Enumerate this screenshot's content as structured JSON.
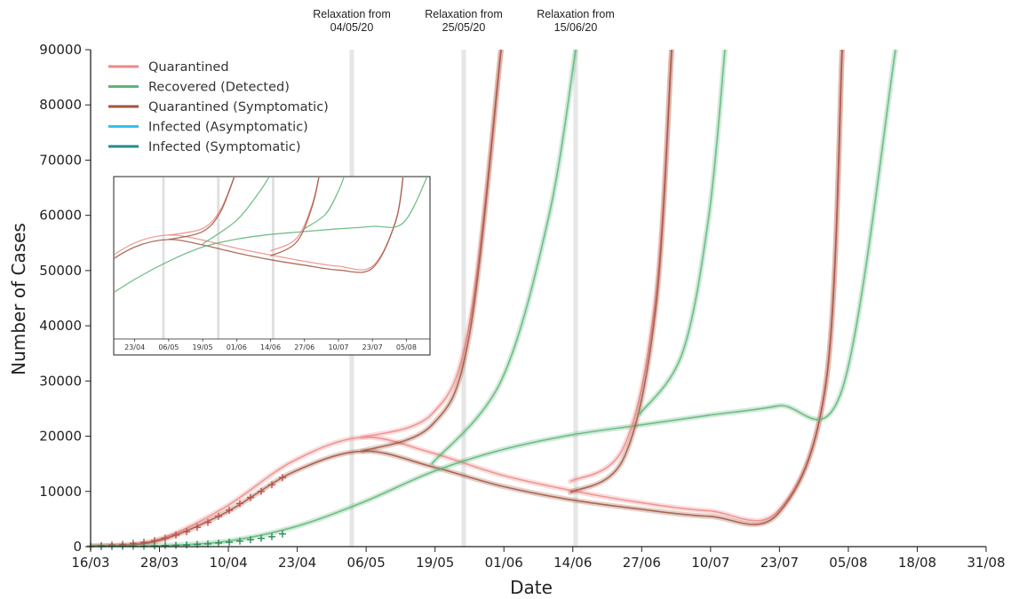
{
  "chart_data": {
    "type": "line",
    "xlabel": "Date",
    "ylabel": "Number of Cases",
    "x_tick_labels": [
      "16/03",
      "28/03",
      "10/04",
      "23/04",
      "06/05",
      "19/05",
      "01/06",
      "14/06",
      "27/06",
      "10/07",
      "23/07",
      "05/08",
      "18/08",
      "31/08"
    ],
    "y_tick_labels": [
      "0",
      "10000",
      "20000",
      "30000",
      "40000",
      "50000",
      "60000",
      "70000",
      "80000",
      "90000"
    ],
    "ylim": [
      0,
      90000
    ],
    "grid": false,
    "legend_position": "top-left",
    "legend": [
      {
        "label": "Quarantined",
        "color": "#ec8a87"
      },
      {
        "label": "Recovered (Detected)",
        "color": "#5cb576"
      },
      {
        "label": "Quarantined (Symptomatic)",
        "color": "#a0533e"
      },
      {
        "label": "Infected (Asymptomatic)",
        "color": "#2dc4f0"
      },
      {
        "label": "Infected (Symptomatic)",
        "color": "#278a8a"
      }
    ],
    "relaxation_annotations": [
      {
        "line1": "Relaxation from",
        "line2": "04/05/20",
        "date": "04/05/20"
      },
      {
        "line1": "Relaxation from",
        "line2": "25/05/20",
        "date": "25/05/20"
      },
      {
        "line1": "Relaxation from",
        "line2": "15/06/20",
        "date": "15/06/20"
      }
    ],
    "observed_series": [
      {
        "name": "Quarantined",
        "color": "#c0504d",
        "points": [
          [
            "16/03",
            100
          ],
          [
            "18/03",
            200
          ],
          [
            "20/03",
            300
          ],
          [
            "22/03",
            400
          ],
          [
            "24/03",
            600
          ],
          [
            "26/03",
            800
          ],
          [
            "28/03",
            1100
          ],
          [
            "30/03",
            1500
          ],
          [
            "01/04",
            2100
          ],
          [
            "03/04",
            2700
          ],
          [
            "05/04",
            3500
          ],
          [
            "07/04",
            4400
          ],
          [
            "09/04",
            5500
          ],
          [
            "11/04",
            6600
          ],
          [
            "13/04",
            7800
          ],
          [
            "15/04",
            8900
          ],
          [
            "17/04",
            10000
          ],
          [
            "19/04",
            11200
          ],
          [
            "21/04",
            12500
          ]
        ]
      },
      {
        "name": "Recovered (Detected)",
        "color": "#2e8b57",
        "points": [
          [
            "16/03",
            0
          ],
          [
            "18/03",
            20
          ],
          [
            "20/03",
            40
          ],
          [
            "22/03",
            60
          ],
          [
            "24/03",
            80
          ],
          [
            "26/03",
            100
          ],
          [
            "28/03",
            150
          ],
          [
            "30/03",
            200
          ],
          [
            "01/04",
            250
          ],
          [
            "03/04",
            300
          ],
          [
            "05/04",
            400
          ],
          [
            "07/04",
            500
          ],
          [
            "09/04",
            650
          ],
          [
            "11/04",
            800
          ],
          [
            "13/04",
            1000
          ],
          [
            "15/04",
            1250
          ],
          [
            "17/04",
            1500
          ],
          [
            "19/04",
            1800
          ],
          [
            "21/04",
            2300
          ]
        ]
      }
    ],
    "series": [
      {
        "name": "Quarantined",
        "color": "#ec8a87",
        "points": [
          [
            "16/03",
            100
          ],
          [
            "28/03",
            1100
          ],
          [
            "10/04",
            7000
          ],
          [
            "23/04",
            15500
          ],
          [
            "06/05",
            19800
          ],
          [
            "19/05",
            17000
          ],
          [
            "01/06",
            13000
          ],
          [
            "14/06",
            10200
          ],
          [
            "27/06",
            8000
          ],
          [
            "10/07",
            6500
          ],
          [
            "23/07",
            6500
          ],
          [
            "01/08",
            30000
          ],
          [
            "04/08",
            90000
          ]
        ]
      },
      {
        "name": "Quarantined (Symptomatic)",
        "color": "#a0533e",
        "points": [
          [
            "16/03",
            80
          ],
          [
            "28/03",
            900
          ],
          [
            "10/04",
            6000
          ],
          [
            "23/04",
            13500
          ],
          [
            "06/05",
            17300
          ],
          [
            "19/05",
            14500
          ],
          [
            "01/06",
            11000
          ],
          [
            "14/06",
            8500
          ],
          [
            "27/06",
            6800
          ],
          [
            "10/07",
            5500
          ],
          [
            "23/07",
            6000
          ],
          [
            "01/08",
            30000
          ],
          [
            "04/08",
            90000
          ]
        ]
      },
      {
        "name": "Recovered (Detected)",
        "color": "#5cb576",
        "points": [
          [
            "16/03",
            0
          ],
          [
            "28/03",
            150
          ],
          [
            "10/04",
            900
          ],
          [
            "23/04",
            3500
          ],
          [
            "06/05",
            8000
          ],
          [
            "19/05",
            13500
          ],
          [
            "01/06",
            17500
          ],
          [
            "14/06",
            20200
          ],
          [
            "27/06",
            22000
          ],
          [
            "10/07",
            23800
          ],
          [
            "23/07",
            25500
          ],
          [
            "04/08",
            28500
          ],
          [
            "14/08",
            90000
          ]
        ]
      },
      {
        "name": "Quarantined",
        "scenario": "04/05/20",
        "color": "#ec8a87",
        "points": [
          [
            "06/05",
            19800
          ],
          [
            "19/05",
            24000
          ],
          [
            "26/05",
            40000
          ],
          [
            "01/06",
            90000
          ]
        ]
      },
      {
        "name": "Quarantined (Symptomatic)",
        "scenario": "04/05/20",
        "color": "#a0533e",
        "points": [
          [
            "06/05",
            17300
          ],
          [
            "19/05",
            22000
          ],
          [
            "26/05",
            38000
          ],
          [
            "01/06",
            90000
          ]
        ]
      },
      {
        "name": "Recovered (Detected)",
        "scenario": "04/05/20",
        "color": "#5cb576",
        "points": [
          [
            "19/05",
            15000
          ],
          [
            "01/06",
            30000
          ],
          [
            "10/06",
            60000
          ],
          [
            "15/06",
            90000
          ]
        ]
      },
      {
        "name": "Quarantined",
        "scenario": "25/05/20",
        "color": "#ec8a87",
        "points": [
          [
            "14/06",
            11800
          ],
          [
            "24/06",
            18000
          ],
          [
            "30/06",
            45000
          ],
          [
            "03/07",
            90000
          ]
        ]
      },
      {
        "name": "Quarantined (Symptomatic)",
        "scenario": "25/05/20",
        "color": "#a0533e",
        "points": [
          [
            "14/06",
            9800
          ],
          [
            "24/06",
            16000
          ],
          [
            "30/06",
            43000
          ],
          [
            "03/07",
            90000
          ]
        ]
      },
      {
        "name": "Recovered (Detected)",
        "scenario": "25/05/20",
        "color": "#5cb576",
        "points": [
          [
            "27/06",
            24000
          ],
          [
            "05/07",
            35000
          ],
          [
            "10/07",
            60000
          ],
          [
            "13/07",
            90000
          ]
        ]
      }
    ]
  }
}
